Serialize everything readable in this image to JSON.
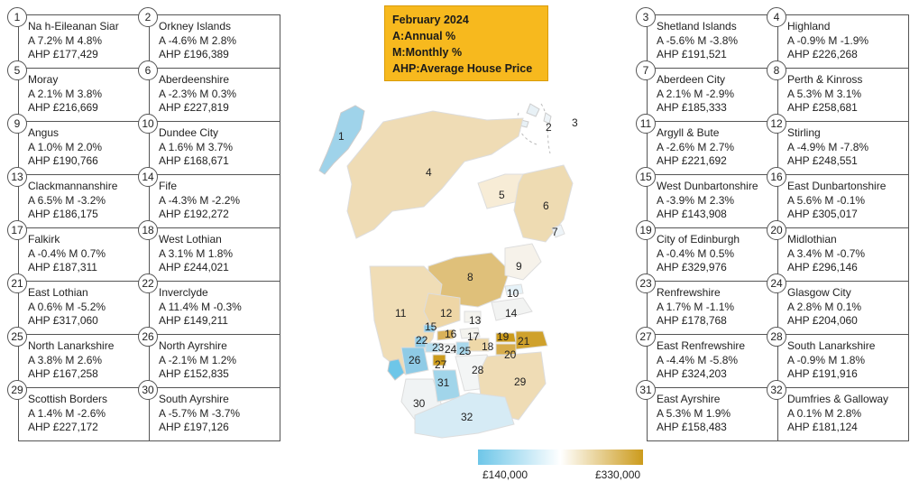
{
  "legend": {
    "title": "February 2024",
    "line1": "A:Annual %",
    "line2": "M:Monthly %",
    "line3": "AHP:Average House Price"
  },
  "scale": {
    "min_label": "£140,000",
    "max_label": "£330,000",
    "min_color": "#6ec6e8",
    "mid_color": "#ffffff",
    "max_color": "#cc9b1c"
  },
  "regions": [
    {
      "num": "1",
      "name": "Na h-Eileanan Siar",
      "stats": "A 7.2%   M 4.8%",
      "ahp": "AHP £177,429"
    },
    {
      "num": "2",
      "name": "Orkney Islands",
      "stats": "A -4.6%   M 2.8%",
      "ahp": "AHP £196,389"
    },
    {
      "num": "3",
      "name": "Shetland Islands",
      "stats": "A -5.6%   M -3.8%",
      "ahp": "AHP £191,521"
    },
    {
      "num": "4",
      "name": "Highland",
      "stats": "A -0.9%   M -1.9%",
      "ahp": "AHP £226,268"
    },
    {
      "num": "5",
      "name": "Moray",
      "stats": "A 2.1%   M 3.8%",
      "ahp": "AHP £216,669"
    },
    {
      "num": "6",
      "name": "Aberdeenshire",
      "stats": "A -2.3%   M 0.3%",
      "ahp": "AHP £227,819"
    },
    {
      "num": "7",
      "name": "Aberdeen City",
      "stats": "A 2.1%   M -2.9%",
      "ahp": "AHP £185,333"
    },
    {
      "num": "8",
      "name": "Perth & Kinross",
      "stats": "A 5.3%   M 3.1%",
      "ahp": "AHP £258,681"
    },
    {
      "num": "9",
      "name": "Angus",
      "stats": "A 1.0%   M 2.0%",
      "ahp": "AHP £190,766"
    },
    {
      "num": "10",
      "name": "Dundee City",
      "stats": "A 1.6%   M 3.7%",
      "ahp": "AHP £168,671"
    },
    {
      "num": "11",
      "name": "Argyll & Bute",
      "stats": "A -2.6%   M 2.7%",
      "ahp": "AHP £221,692"
    },
    {
      "num": "12",
      "name": "Stirling",
      "stats": "A -4.9%   M -7.8%",
      "ahp": "AHP £248,551"
    },
    {
      "num": "13",
      "name": "Clackmannanshire",
      "stats": "A 6.5%   M -3.2%",
      "ahp": "AHP £186,175"
    },
    {
      "num": "14",
      "name": "Fife",
      "stats": "A -4.3%   M -2.2%",
      "ahp": "AHP £192,272"
    },
    {
      "num": "15",
      "name": "West Dunbartonshire",
      "stats": "A -3.9%   M 2.3%",
      "ahp": "AHP £143,908"
    },
    {
      "num": "16",
      "name": "East Dunbartonshire",
      "stats": "A 5.6%   M -0.1%",
      "ahp": "AHP £305,017"
    },
    {
      "num": "17",
      "name": "Falkirk",
      "stats": "A -0.4%   M 0.7%",
      "ahp": "AHP £187,311"
    },
    {
      "num": "18",
      "name": "West Lothian",
      "stats": "A 3.1%   M 1.8%",
      "ahp": "AHP £244,021"
    },
    {
      "num": "19",
      "name": "City of Edinburgh",
      "stats": "A -0.4%   M 0.5%",
      "ahp": "AHP £329,976"
    },
    {
      "num": "20",
      "name": "Midlothian",
      "stats": "A 3.4%   M -0.7%",
      "ahp": "AHP £296,146"
    },
    {
      "num": "21",
      "name": "East Lothian",
      "stats": "A 0.6%   M -5.2%",
      "ahp": "AHP £317,060"
    },
    {
      "num": "22",
      "name": "Inverclyde",
      "stats": "A 11.4%   M -0.3%",
      "ahp": "AHP £149,211"
    },
    {
      "num": "23",
      "name": "Renfrewshire",
      "stats": "A 1.7%   M -1.1%",
      "ahp": "AHP £178,768"
    },
    {
      "num": "24",
      "name": "Glasgow City",
      "stats": "A 2.8%   M 0.1%",
      "ahp": "AHP £204,060"
    },
    {
      "num": "25",
      "name": "North Lanarkshire",
      "stats": "A 3.8%   M 2.6%",
      "ahp": "AHP £167,258"
    },
    {
      "num": "26",
      "name": "North Ayrshire",
      "stats": "A -2.1%   M 1.2%",
      "ahp": "AHP £152,835"
    },
    {
      "num": "27",
      "name": "East Renfrewshire",
      "stats": "A -4.4%   M -5.8%",
      "ahp": "AHP £324,203"
    },
    {
      "num": "28",
      "name": "South Lanarkshire",
      "stats": "A -0.9%   M 1.8%",
      "ahp": "AHP £191,916"
    },
    {
      "num": "29",
      "name": "Scottish Borders",
      "stats": "A 1.4%   M -2.6%",
      "ahp": "AHP £227,172"
    },
    {
      "num": "30",
      "name": "South Ayrshire",
      "stats": "A -5.7%   M -3.7%",
      "ahp": "AHP £197,126"
    },
    {
      "num": "31",
      "name": "East Ayrshire",
      "stats": "A 5.3%   M 1.9%",
      "ahp": "AHP £158,483"
    },
    {
      "num": "32",
      "name": "Dumfries & Galloway",
      "stats": "A 0.1%   M 2.8%",
      "ahp": "AHP £181,124"
    }
  ]
}
